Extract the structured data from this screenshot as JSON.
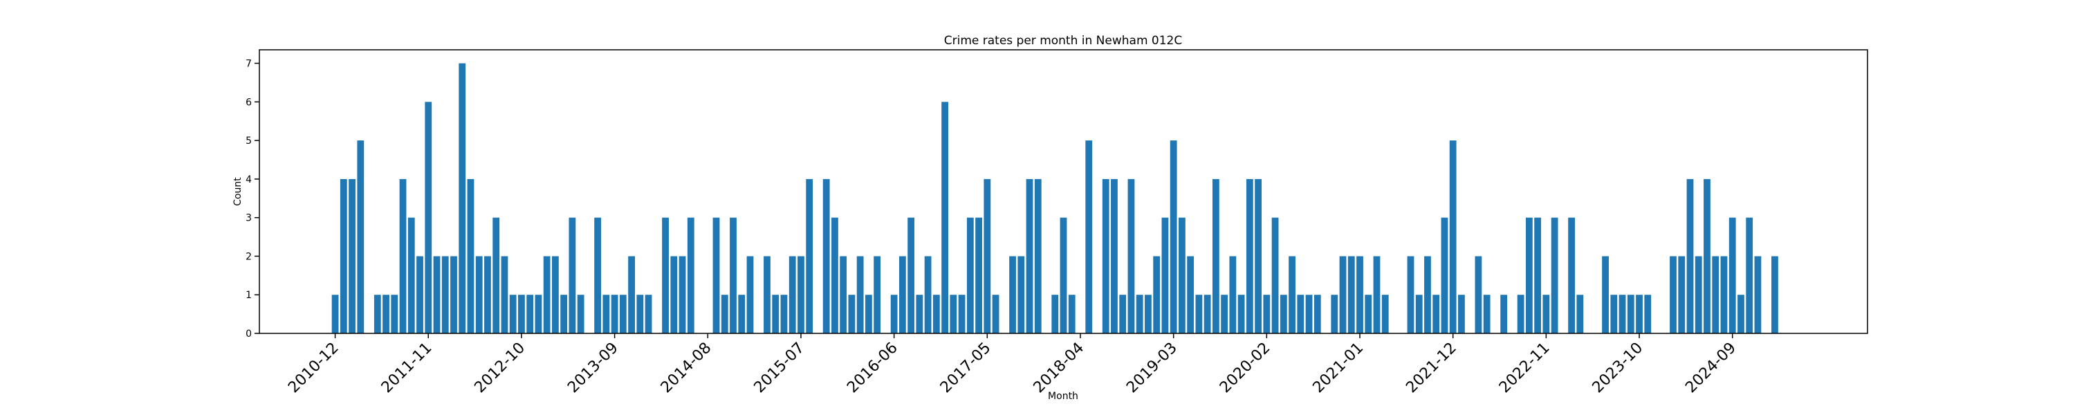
{
  "chart_data": {
    "type": "bar",
    "title": "Crime rates per month in Newham 012C",
    "xlabel": "Month",
    "ylabel": "Count",
    "ylim": [
      0,
      7.35
    ],
    "yticks": [
      0,
      1,
      2,
      3,
      4,
      5,
      6,
      7
    ],
    "bar_color": "#1f77b4",
    "grid": false,
    "start_month": "2010-12",
    "xtick_labels": [
      "2010-12",
      "2011-11",
      "2012-10",
      "2013-09",
      "2014-08",
      "2015-07",
      "2016-06",
      "2017-05",
      "2018-04",
      "2019-03",
      "2020-02",
      "2021-01",
      "2021-12",
      "2022-11",
      "2023-10",
      "2024-09"
    ],
    "values": [
      1,
      4,
      4,
      5,
      0,
      1,
      1,
      1,
      4,
      3,
      2,
      6,
      2,
      2,
      2,
      7,
      4,
      2,
      2,
      3,
      2,
      1,
      1,
      1,
      1,
      2,
      2,
      1,
      3,
      1,
      0,
      3,
      1,
      1,
      1,
      2,
      1,
      1,
      0,
      3,
      2,
      2,
      3,
      0,
      0,
      3,
      1,
      3,
      1,
      2,
      0,
      2,
      1,
      1,
      2,
      2,
      4,
      0,
      4,
      3,
      2,
      1,
      2,
      1,
      2,
      0,
      1,
      2,
      3,
      1,
      2,
      1,
      6,
      1,
      1,
      3,
      3,
      4,
      1,
      0,
      2,
      2,
      4,
      4,
      0,
      1,
      3,
      1,
      0,
      5,
      0,
      4,
      4,
      1,
      4,
      1,
      1,
      2,
      3,
      5,
      3,
      2,
      1,
      1,
      4,
      1,
      2,
      1,
      4,
      4,
      1,
      3,
      1,
      2,
      1,
      1,
      1,
      0,
      1,
      2,
      2,
      2,
      1,
      2,
      1,
      0,
      0,
      2,
      1,
      2,
      1,
      3,
      5,
      1,
      0,
      2,
      1,
      0,
      1,
      0,
      1,
      3,
      3,
      1,
      3,
      0,
      3,
      1,
      0,
      0,
      2,
      1,
      1,
      1,
      1,
      1,
      0,
      0,
      2,
      2,
      4,
      2,
      4,
      2,
      2,
      3,
      1,
      3,
      2,
      0,
      2
    ]
  }
}
